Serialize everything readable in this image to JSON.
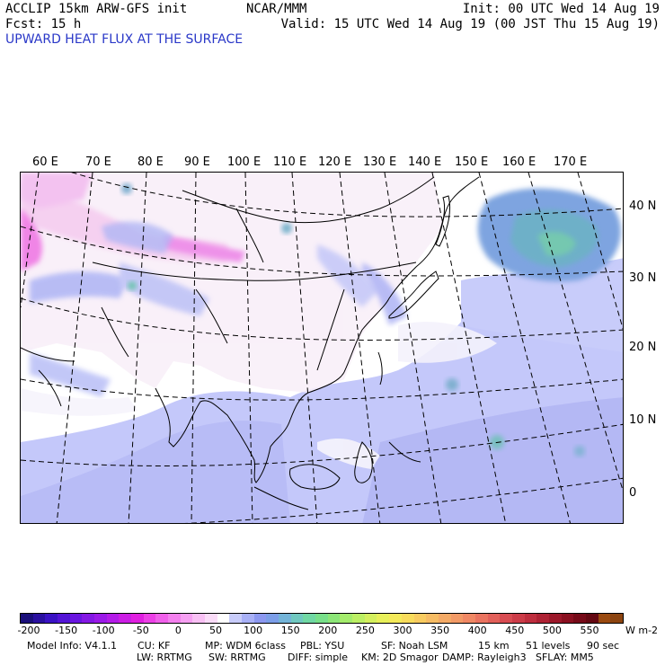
{
  "header": {
    "model": "ACCLIP 15km ARW-GFS init",
    "fcst": "Fcst:   15 h",
    "center": "NCAR/MMM",
    "init": "Init: 00 UTC Wed 14 Aug 19",
    "valid": "Valid: 15 UTC Wed 14 Aug 19 (00 JST Thu 15 Aug 19)",
    "field": "UPWARD HEAT FLUX AT THE SURFACE"
  },
  "map": {
    "lon_labels": [
      "60 E",
      "70 E",
      "80 E",
      "90 E",
      "100 E",
      "110 E",
      "120 E",
      "130 E",
      "140 E",
      "150 E",
      "160 E",
      "170 E"
    ],
    "lat_labels": [
      "40 N",
      "30 N",
      "20 N",
      "10 N",
      "0"
    ]
  },
  "colorbar": {
    "units": "W m-2",
    "ticks": [
      "-200",
      "-150",
      "-100",
      "-50",
      "0",
      "50",
      "100",
      "150",
      "200",
      "250",
      "300",
      "350",
      "400",
      "450",
      "500",
      "550"
    ],
    "colors": [
      "#1a0f7a",
      "#2a10a0",
      "#3a12c4",
      "#5314d6",
      "#6a16e0",
      "#8418e4",
      "#9b1ae8",
      "#b41ce8",
      "#cc1ee4",
      "#e020e0",
      "#ec40e6",
      "#f060ea",
      "#f480ee",
      "#f6a0f2",
      "#f8c0f4",
      "#fadcf8",
      "#ffffff",
      "#c8ccfa",
      "#a8b0f6",
      "#8c98f0",
      "#7c9ee8",
      "#74b4d8",
      "#70c8c0",
      "#70d8a4",
      "#78e08a",
      "#8ce678",
      "#a4ec6c",
      "#bcf064",
      "#d4f05e",
      "#e8f05a",
      "#f4ea5a",
      "#f8dc5c",
      "#f8cc60",
      "#f6bc64",
      "#f4aa66",
      "#f29a66",
      "#f08864",
      "#ea7460",
      "#e2605a",
      "#d84c52",
      "#cc3c48",
      "#be2e3e",
      "#ae2234",
      "#9c182a",
      "#8a1020",
      "#760a18",
      "#640812",
      "#9a4a10",
      "#8c4410"
    ]
  },
  "model_info": {
    "line1": [
      "Model Info: V4.1.1",
      "CU: KF",
      "MP: WDM 6class",
      "PBL: YSU",
      "SF: Noah LSM",
      "15 km",
      "51 levels",
      "90 sec"
    ],
    "line2": [
      "LW: RRTMG",
      "SW: RRTMG",
      "DIFF: simple",
      "KM: 2D Smagor",
      "DAMP: Rayleigh3",
      "SFLAY: MM5"
    ]
  }
}
